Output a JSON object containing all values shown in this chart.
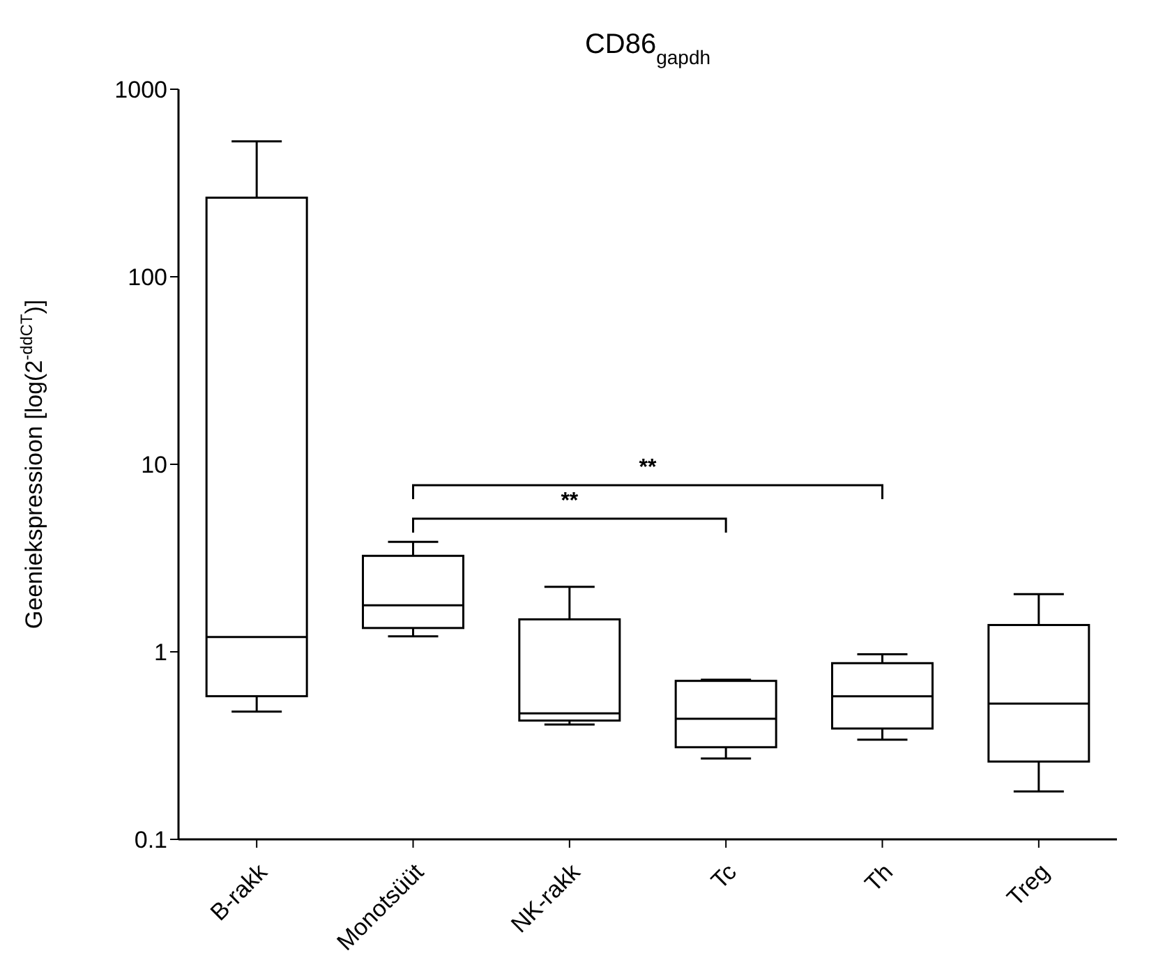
{
  "chart_data": {
    "type": "box",
    "title": "CD86$_{gapdh}$",
    "ylabel": "Geeniekspressioon [log(2$^{-ddCT}$)]",
    "categories": [
      "B-rakk",
      "Monotsüüt",
      "NK-rakk",
      "Tc",
      "Th",
      "Treg"
    ],
    "boxes": [
      {
        "low": 0.48,
        "q1": 0.58,
        "median": 1.2,
        "q3": 264,
        "high": 527
      },
      {
        "low": 1.21,
        "q1": 1.34,
        "median": 1.77,
        "q3": 3.25,
        "high": 3.86
      },
      {
        "low": 0.41,
        "q1": 0.43,
        "median": 0.47,
        "q3": 1.49,
        "high": 2.22
      },
      {
        "low": 0.27,
        "q1": 0.31,
        "median": 0.44,
        "q3": 0.7,
        "high": 0.71
      },
      {
        "low": 0.34,
        "q1": 0.39,
        "median": 0.58,
        "q3": 0.87,
        "high": 0.97
      },
      {
        "low": 0.18,
        "q1": 0.26,
        "median": 0.53,
        "q3": 1.39,
        "high": 2.03
      }
    ],
    "color": "#000000",
    "log": true,
    "ylim": [
      0.1,
      1000
    ],
    "yticks": [
      0.1,
      1,
      10,
      100,
      1000
    ],
    "annotations": [
      "**",
      "**"
    ]
  }
}
